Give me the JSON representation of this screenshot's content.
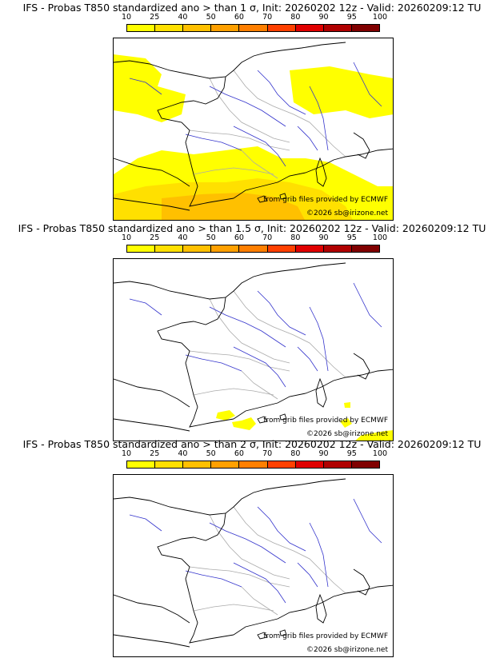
{
  "colors": {
    "scale": [
      "#ffff00",
      "#ffe000",
      "#ffc000",
      "#ffa000",
      "#ff7f00",
      "#ff4000",
      "#e00000",
      "#b00000",
      "#800000"
    ],
    "coast": "#000000",
    "river": "#3333cc",
    "border": "#aaaaaa"
  },
  "scale": {
    "labels": [
      "10",
      "25",
      "40",
      "50",
      "60",
      "70",
      "80",
      "90",
      "95",
      "100"
    ]
  },
  "credits": {
    "source": "from grib files provided by ECMWF",
    "copyright": "©2026 sb@irizone.net"
  },
  "panels": [
    {
      "title": "IFS - Probas T850  standardized ano > than 1 σ, Init: 20260202 12z - Valid: 20260209:12 TU"
    },
    {
      "title": "IFS - Probas T850  standardized ano > than 1.5 σ, Init: 20260202 12z - Valid: 20260209:12 TU"
    },
    {
      "title": "IFS - Probas T850  standardized ano > than 2 σ, Init: 20260202 12z - Valid: 20260209:12 TU"
    }
  ]
}
